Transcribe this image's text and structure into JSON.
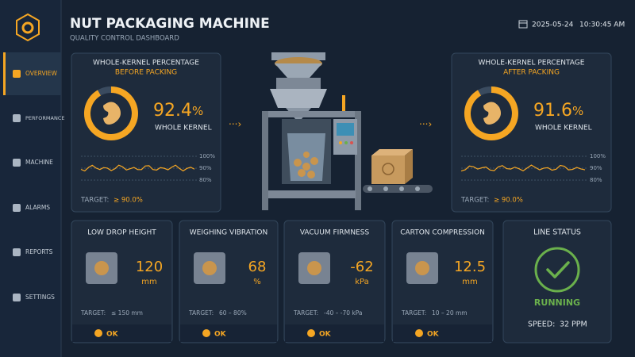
{
  "header": {
    "title": "NUT PACKAGING MACHINE",
    "subtitle": "QUALITY CONTROL DASHBOARD",
    "date": "2025-05-24",
    "time": "10:30:45 AM"
  },
  "sidebar": [
    "OVERVIEW",
    "PERFORMANCE",
    "MACHINE",
    "ALARMS",
    "REPORTS",
    "SETTINGS"
  ],
  "kernel_panels": [
    {
      "title": "WHOLE-KERNEL PERCENTAGE",
      "stage": "BEFORE PACKING",
      "value": 92.4,
      "unit": "%",
      "label": "WHOLE KERNEL",
      "scale": [
        "100%",
        "90%",
        "80%"
      ],
      "target_label": "TARGET:",
      "target": "≥ 90.0%"
    },
    {
      "title": "WHOLE-KERNEL PERCENTAGE",
      "stage": "AFTER PACKING",
      "value": 91.6,
      "unit": "%",
      "label": "WHOLE KERNEL",
      "scale": [
        "100%",
        "90%",
        "80%"
      ],
      "target_label": "TARGET:",
      "target": "≥ 90.0%"
    }
  ],
  "cards": [
    {
      "title": "LOW DROP HEIGHT",
      "value": 120,
      "unit": "mm",
      "target_label": "TARGET:",
      "target": "≤ 150 mm",
      "status": "OK"
    },
    {
      "title": "WEIGHING VIBRATION",
      "value": 68,
      "unit": "%",
      "target_label": "TARGET:",
      "target": "60 – 80%",
      "status": "OK"
    },
    {
      "title": "VACUUM FIRMNESS",
      "value": -62,
      "unit": "kPa",
      "target_label": "TARGET:",
      "target": "-40 – -70 kPa",
      "status": "OK"
    },
    {
      "title": "CARTON COMPRESSION",
      "value": 12.5,
      "unit": "mm",
      "target_label": "TARGET:",
      "target": "10 – 20 mm",
      "status": "OK"
    }
  ],
  "line_status": {
    "title": "LINE STATUS",
    "status": "RUNNING",
    "speed_label": "SPEED:",
    "speed": 32,
    "speed_unit": "PPM"
  }
}
